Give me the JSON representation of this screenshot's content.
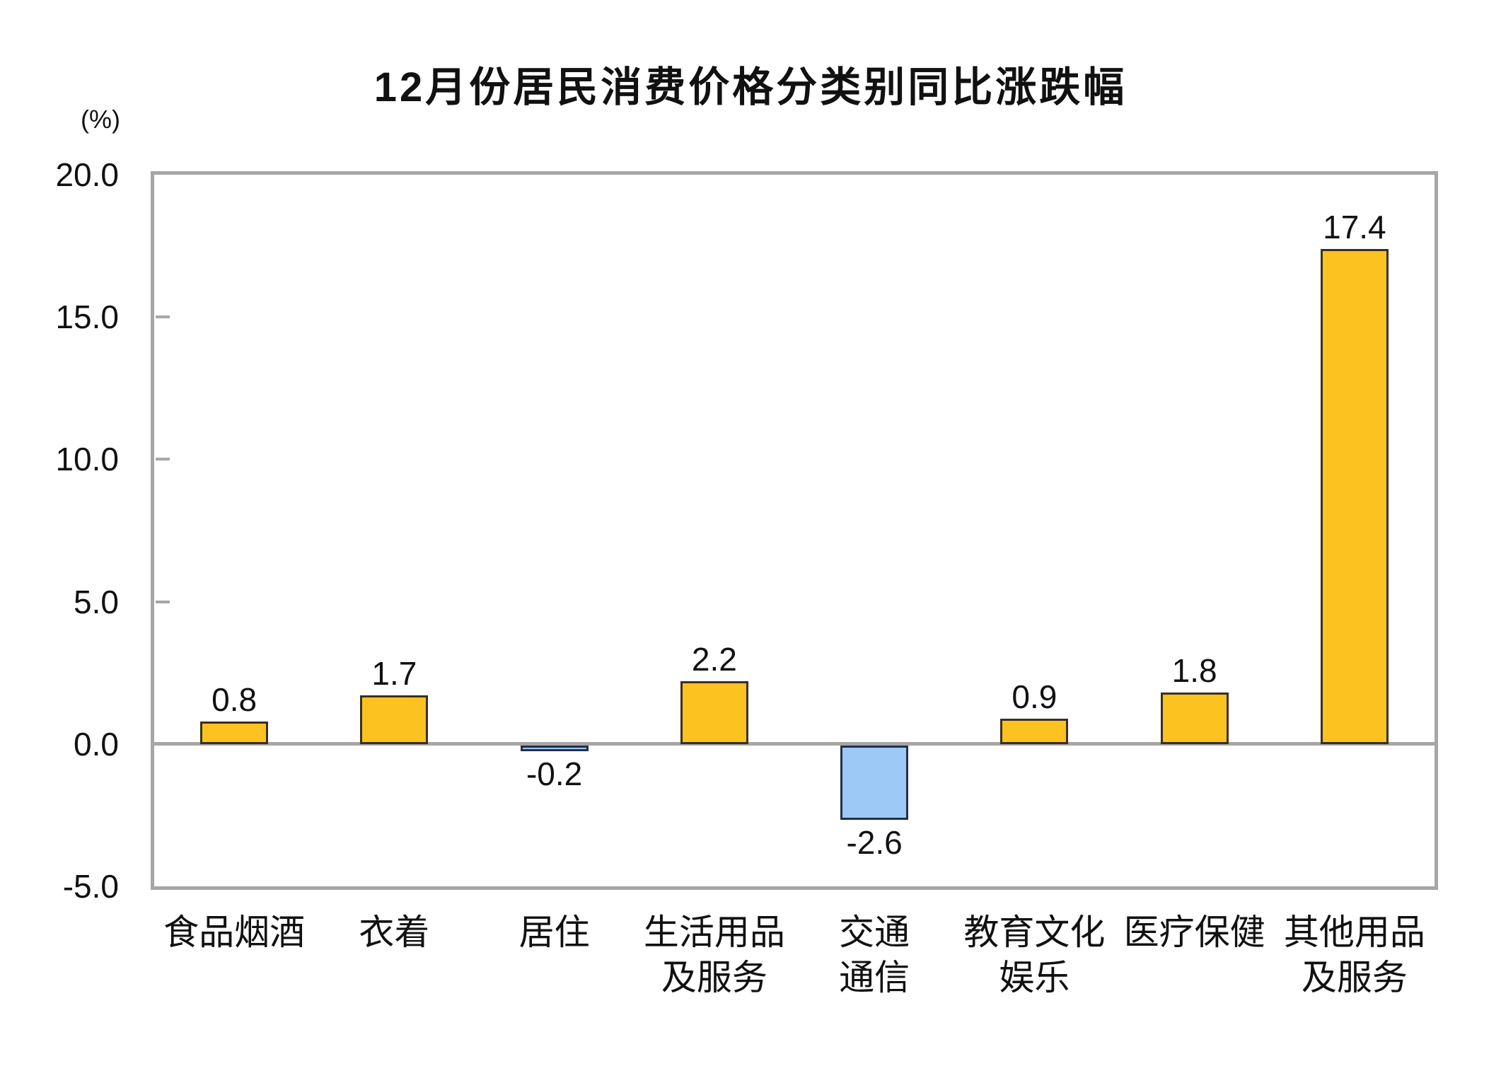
{
  "chart_data": {
    "type": "bar",
    "title": "12月份居民消费价格分类别同比涨跌幅",
    "unit_label": "(%)",
    "categories": [
      "食品烟酒",
      "衣着",
      "居住",
      "生活用品\n及服务",
      "交通\n通信",
      "教育文化\n娱乐",
      "医疗保健",
      "其他用品\n及服务"
    ],
    "values": [
      0.8,
      1.7,
      -0.2,
      2.2,
      -2.6,
      0.9,
      1.8,
      17.4
    ],
    "data_labels": [
      "0.8",
      "1.7",
      "-0.2",
      "2.2",
      "-2.6",
      "0.9",
      "1.8",
      "17.4"
    ],
    "ylim": [
      -5,
      20
    ],
    "yticks": [
      {
        "value": 20,
        "label": "20.0"
      },
      {
        "value": 15,
        "label": "15.0"
      },
      {
        "value": 10,
        "label": "10.0"
      },
      {
        "value": 5,
        "label": "5.0"
      },
      {
        "value": 0,
        "label": "0.0"
      },
      {
        "value": -5,
        "label": "-5.0"
      }
    ],
    "grid": "zero-line-only",
    "legend": "none",
    "colors": {
      "positive_fill": "#FCC220",
      "positive_border": "#3A3020",
      "negative_fill": "#9CC9F5",
      "negative_border": "#22304A",
      "axis": "#A6A6A6",
      "text": "#111111",
      "background": "#FFFFFF"
    }
  }
}
